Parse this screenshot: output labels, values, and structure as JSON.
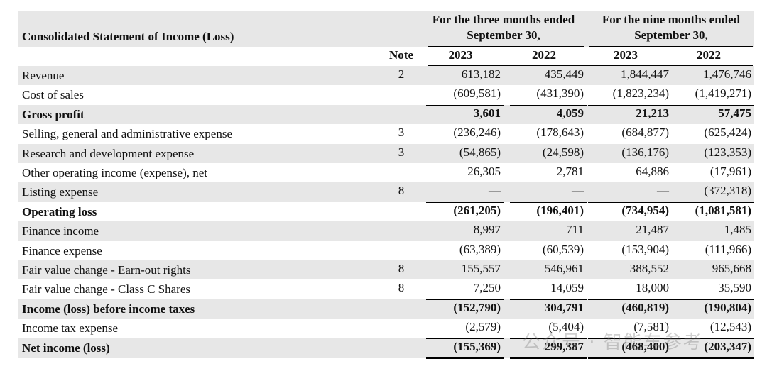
{
  "header": {
    "title": "Consolidated Statement of Income (Loss)",
    "note": "Note",
    "groups": [
      "For the three months ended September 30,",
      "For the nine months ended September 30,"
    ],
    "years": [
      "2023",
      "2022",
      "2023",
      "2022"
    ]
  },
  "table": {
    "rows": [
      {
        "label": "Revenue",
        "note": "2",
        "values": [
          "613,182",
          "435,449",
          "1,844,447",
          "1,476,746"
        ],
        "bold": false
      },
      {
        "label": "Cost of sales",
        "note": "",
        "values": [
          "(609,581)",
          "(431,390)",
          "(1,823,234)",
          "(1,419,271)"
        ],
        "bold": false
      },
      {
        "label": "Gross profit",
        "note": "",
        "values": [
          "3,601",
          "4,059",
          "21,213",
          "57,475"
        ],
        "bold": true
      },
      {
        "label": "Selling, general and administrative expense",
        "note": "3",
        "values": [
          "(236,246)",
          "(178,643)",
          "(684,877)",
          "(625,424)"
        ],
        "bold": false
      },
      {
        "label": "Research and development expense",
        "note": "3",
        "values": [
          "(54,865)",
          "(24,598)",
          "(136,176)",
          "(123,353)"
        ],
        "bold": false
      },
      {
        "label": "Other operating income (expense), net",
        "note": "",
        "values": [
          "26,305",
          "2,781",
          "64,886",
          "(17,961)"
        ],
        "bold": false
      },
      {
        "label": "Listing expense",
        "note": "8",
        "values": [
          "—",
          "—",
          "—",
          "(372,318)"
        ],
        "bold": false
      },
      {
        "label": "Operating loss",
        "note": "",
        "values": [
          "(261,205)",
          "(196,401)",
          "(734,954)",
          "(1,081,581)"
        ],
        "bold": true
      },
      {
        "label": "Finance income",
        "note": "",
        "values": [
          "8,997",
          "711",
          "21,487",
          "1,485"
        ],
        "bold": false
      },
      {
        "label": "Finance expense",
        "note": "",
        "values": [
          "(63,389)",
          "(60,539)",
          "(153,904)",
          "(111,966)"
        ],
        "bold": false
      },
      {
        "label": "Fair value change - Earn-out rights",
        "note": "8",
        "values": [
          "155,557",
          "546,961",
          "388,552",
          "965,668"
        ],
        "bold": false
      },
      {
        "label": "Fair value change - Class C Shares",
        "note": "8",
        "values": [
          "7,250",
          "14,059",
          "18,000",
          "35,590"
        ],
        "bold": false
      },
      {
        "label": "Income (loss) before income taxes",
        "note": "",
        "values": [
          "(152,790)",
          "304,791",
          "(460,819)",
          "(190,804)"
        ],
        "bold": true
      },
      {
        "label": "Income tax expense",
        "note": "",
        "values": [
          "(2,579)",
          "(5,404)",
          "(7,581)",
          "(12,543)"
        ],
        "bold": false
      },
      {
        "label": "Net income (loss)",
        "note": "",
        "values": [
          "(155,369)",
          "299,387",
          "(468,400)",
          "(203,347)"
        ],
        "bold": true
      }
    ]
  },
  "watermark": "公众号 · 智能车参考"
}
